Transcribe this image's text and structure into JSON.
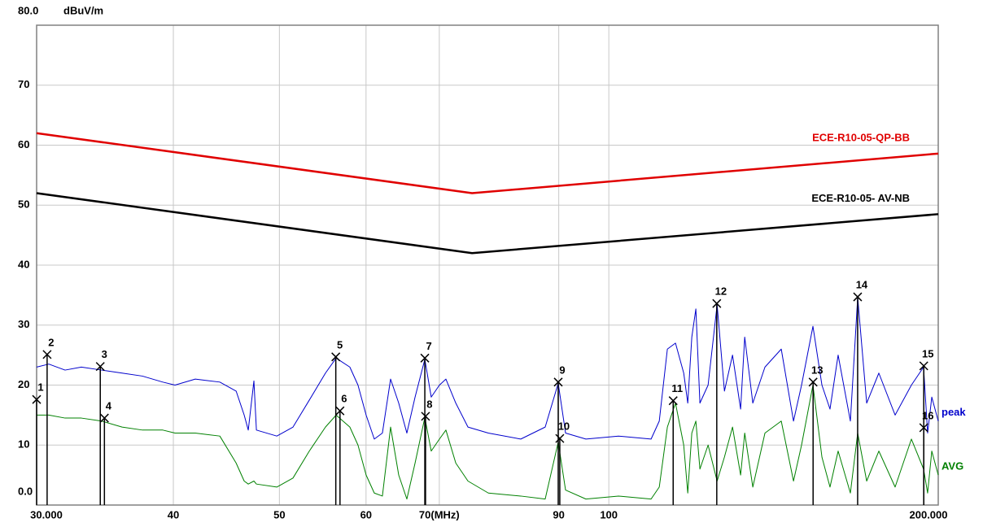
{
  "chart_data": {
    "type": "line",
    "y_unit": "dBuV/m",
    "log_x": true,
    "grid": true,
    "xlim": [
      30,
      200
    ],
    "ylim": [
      0,
      80
    ],
    "xticks": [
      {
        "value": 30,
        "label": "30.000"
      },
      40,
      50,
      60,
      {
        "value": 70,
        "label": "70(MHz)"
      },
      90,
      100,
      {
        "value": 200,
        "label": "200.000"
      }
    ],
    "yticks": [
      0,
      10,
      20,
      30,
      40,
      50,
      60,
      70,
      80
    ],
    "ytick_labels": [
      "0.0",
      "10",
      "20",
      "30",
      "40",
      "50",
      "60",
      "70",
      "80.0"
    ],
    "series": [
      {
        "name": "ECE-R10-05-QP-BB",
        "color": "#e00000",
        "x": [
          30,
          75,
          200
        ],
        "values": [
          62,
          52,
          58.6
        ]
      },
      {
        "name": "ECE-R10-05- AV-NB",
        "color": "#000000",
        "x": [
          30,
          75,
          200
        ],
        "values": [
          52,
          42,
          48.5
        ]
      },
      {
        "name": "peak",
        "color": "#0000cc",
        "x": [
          30.0,
          30.78,
          31.85,
          32.96,
          34.4,
          35.91,
          37.48,
          39.12,
          40.14,
          41.89,
          44.11,
          45.65,
          46.43,
          46.83,
          47.39,
          47.64,
          49.73,
          51.45,
          53.25,
          55.09,
          56.34,
          57.99,
          58.99,
          60.01,
          61.05,
          62.1,
          63.18,
          64.27,
          65.38,
          66.52,
          67.9,
          68.82,
          70.02,
          70.98,
          72.47,
          74.35,
          77.61,
          83.09,
          87.47,
          89.9,
          91.3,
          95.29,
          102.05,
          109.3,
          111.2,
          113.11,
          115.06,
          117.07,
          118.07,
          119.08,
          120.1,
          121.13,
          123.23,
          125.59,
          127.54,
          129.73,
          131.96,
          133.1,
          135.39,
          138.89,
          143.74,
          147.49,
          150.01,
          153.65,
          156.58,
          159.26,
          162.01,
          166.24,
          168.82,
          172.04,
          176.5,
          182.65,
          189.02,
          193.92,
          195.58,
          197.3,
          200.0
        ],
        "values": [
          23,
          23.5,
          22.5,
          23,
          22.5,
          22,
          21.5,
          20.5,
          20,
          21,
          20.5,
          19,
          15,
          12.5,
          20.7,
          12.5,
          11.5,
          13,
          17.5,
          22,
          24.5,
          23,
          20,
          15,
          11,
          12,
          21,
          17,
          12,
          18,
          24.3,
          18,
          20,
          21,
          17,
          13,
          12,
          11,
          13,
          20.3,
          12,
          11,
          11.5,
          11,
          14,
          26,
          27,
          22,
          17,
          28,
          32.7,
          17,
          20,
          33.4,
          19,
          25,
          16,
          28,
          17,
          23,
          26,
          14,
          20,
          29.8,
          20,
          16,
          25,
          14,
          34.6,
          17,
          22,
          15,
          20,
          23,
          12,
          18,
          14
        ]
      },
      {
        "name": "AVG",
        "color": "#008000",
        "x": [
          30.0,
          30.78,
          31.85,
          32.96,
          34.4,
          35.91,
          37.48,
          39.12,
          40.14,
          41.89,
          44.11,
          45.65,
          46.43,
          46.83,
          47.39,
          47.64,
          49.73,
          51.45,
          53.25,
          55.09,
          56.34,
          57.99,
          58.99,
          60.01,
          61.05,
          62.1,
          63.18,
          64.27,
          65.38,
          66.52,
          67.9,
          68.82,
          70.02,
          70.98,
          72.47,
          74.35,
          77.61,
          83.09,
          87.47,
          89.9,
          91.3,
          95.29,
          102.05,
          109.3,
          111.2,
          113.11,
          115.06,
          117.07,
          118.07,
          119.08,
          120.1,
          121.13,
          123.23,
          125.59,
          127.54,
          129.73,
          131.96,
          133.1,
          135.39,
          138.89,
          143.74,
          147.49,
          150.01,
          153.65,
          156.58,
          159.26,
          162.01,
          166.24,
          168.82,
          172.04,
          176.5,
          182.65,
          189.02,
          193.92,
          195.58,
          197.3,
          200.0
        ],
        "values": [
          15,
          15,
          14.5,
          14.5,
          14,
          13,
          12.5,
          12.5,
          12,
          12,
          11.5,
          7,
          4,
          3.5,
          4,
          3.5,
          3,
          4.5,
          9,
          13,
          15,
          13,
          10,
          5,
          2,
          1.5,
          13,
          5,
          1,
          7,
          14.6,
          9,
          11,
          12.5,
          7,
          4,
          2,
          1.5,
          1,
          10.5,
          2.5,
          1,
          1.5,
          1,
          3,
          13,
          17,
          10,
          2,
          12,
          14,
          6,
          10,
          4,
          8,
          13,
          5,
          12,
          3,
          12,
          14,
          4,
          10,
          20,
          8,
          3,
          9,
          2,
          12,
          4,
          9,
          3,
          11,
          6,
          2,
          9,
          5
        ]
      }
    ],
    "markers": {
      "labels": [
        "1",
        "2",
        "3",
        "4",
        "5",
        "6",
        "7",
        "8",
        "9",
        "10",
        "11",
        "12",
        "13",
        "14",
        "15",
        "16"
      ],
      "x": [
        30.0,
        30.67,
        34.3,
        34.6,
        56.3,
        56.8,
        67.9,
        68.0,
        89.9,
        90.2,
        114.5,
        125.5,
        153.7,
        168.8,
        194.0,
        194.0
      ],
      "values": [
        17.6,
        25.1,
        23.1,
        14.5,
        24.7,
        15.7,
        24.5,
        14.8,
        20.5,
        11.1,
        17.4,
        33.6,
        20.5,
        34.7,
        23.2,
        12.9
      ]
    }
  }
}
